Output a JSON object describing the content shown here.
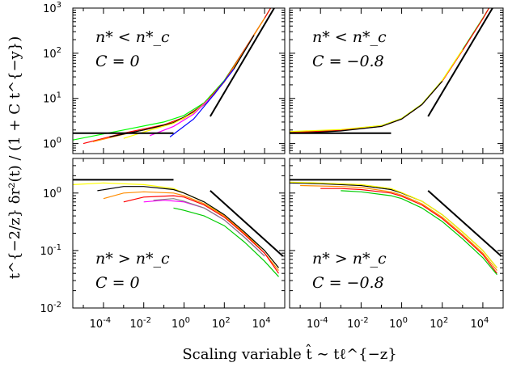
{
  "chart_data": {
    "type": "line",
    "xlabel": "Scaling variable t̂ ∼ tℓ^{−z}",
    "ylabel": "t^{−2/z} δr²(t) / (1 + C t^{−y})",
    "x_scale": "log",
    "y_scale": "log",
    "xlim": [
      3e-06,
      100000.0
    ],
    "x_ticks": [
      "10^-4",
      "10^-2",
      "10^0",
      "10^2",
      "10^4"
    ],
    "panels": [
      {
        "id": "top-left",
        "ylim": [
          0.6,
          1000
        ],
        "y_ticks": [
          "10^0",
          "10^1",
          "10^2",
          "10^3"
        ],
        "label_line1": "n* < n*_c",
        "label_line2": "C = 0",
        "reference_lines": [
          {
            "x": [
              3e-06,
              0.3
            ],
            "y": [
              1.7,
              1.7
            ]
          },
          {
            "x": [
              20,
              30000
            ],
            "y": [
              4,
              1000
            ]
          }
        ],
        "series": [
          {
            "color": "#00ff00",
            "x": [
              3e-06,
              0.001,
              0.1,
              1,
              10,
              100,
              1000,
              10000,
              20000
            ],
            "y": [
              1.2,
              2.0,
              3.0,
              4.2,
              8,
              25,
              120,
              600,
              1000
            ]
          },
          {
            "color": "#ff0000",
            "x": [
              1e-05,
              0.001,
              0.1,
              1,
              10,
              100,
              1000,
              10000,
              20000
            ],
            "y": [
              1.0,
              1.7,
              2.6,
              3.8,
              7.5,
              24,
              120,
              600,
              1000
            ]
          },
          {
            "color": "#ff8c00",
            "x": [
              3e-05,
              0.001,
              0.1,
              1,
              10,
              100,
              1000,
              10000
            ],
            "y": [
              1.1,
              1.6,
              2.5,
              3.6,
              7.2,
              23,
              115,
              600
            ]
          },
          {
            "color": "#000000",
            "x": [
              0.0002,
              0.01,
              0.3,
              3,
              30,
              300,
              3000
            ],
            "y": [
              1.4,
              2.0,
              2.9,
              5,
              12,
              45,
              250
            ]
          },
          {
            "color": "#ffff00",
            "x": [
              0.001,
              0.01,
              0.3,
              3,
              30,
              300
            ],
            "y": [
              1.3,
              1.8,
              2.8,
              4.8,
              12,
              45
            ]
          },
          {
            "color": "#ff00ff",
            "x": [
              0.02,
              0.3,
              3,
              30,
              300
            ],
            "y": [
              1.5,
              2.4,
              4.5,
              12,
              45
            ]
          },
          {
            "color": "#0000ff",
            "x": [
              0.2,
              3,
              30,
              300
            ],
            "y": [
              1.4,
              3.5,
              12,
              45
            ]
          }
        ]
      },
      {
        "id": "top-right",
        "ylim": [
          0.6,
          1000
        ],
        "y_ticks": [],
        "label_line1": "n* < n*_c",
        "label_line2": "C = −0.8",
        "reference_lines": [
          {
            "x": [
              3e-06,
              0.3
            ],
            "y": [
              1.7,
              1.7
            ]
          },
          {
            "x": [
              20,
              30000
            ],
            "y": [
              4,
              1000
            ]
          }
        ],
        "series": [
          {
            "color": "#00ff00",
            "x": [
              3e-06,
              0.001,
              0.1,
              1,
              10,
              100,
              1000,
              10000,
              20000
            ],
            "y": [
              1.8,
              2.0,
              2.5,
              3.6,
              7.5,
              25,
              120,
              600,
              1000
            ]
          },
          {
            "color": "#ff0000",
            "x": [
              3e-06,
              0.001,
              0.1,
              1,
              10,
              100,
              1000,
              10000,
              20000
            ],
            "y": [
              1.75,
              1.95,
              2.4,
              3.5,
              7.3,
              24,
              115,
              580,
              1000
            ]
          },
          {
            "color": "#ffff00",
            "x": [
              3e-06,
              0.001,
              0.1,
              1,
              10,
              100,
              1000
            ],
            "y": [
              1.85,
              2.05,
              2.5,
              3.6,
              7.5,
              25,
              120
            ]
          },
          {
            "color": "#000000",
            "x": [
              1e-05,
              0.001,
              0.1,
              1,
              10,
              100
            ],
            "y": [
              1.7,
              1.9,
              2.4,
              3.5,
              7.3,
              24
            ]
          }
        ]
      },
      {
        "id": "bottom-left",
        "ylim": [
          0.01,
          4
        ],
        "y_ticks": [
          "10^-2",
          "10^-1",
          "10^0"
        ],
        "label_line1": "n* > n*_c",
        "label_line2": "C = 0",
        "reference_lines": [
          {
            "x": [
              3e-06,
              0.3
            ],
            "y": [
              1.7,
              1.7
            ]
          },
          {
            "x": [
              20,
              80000
            ],
            "y": [
              1.1,
              0.08
            ]
          }
        ],
        "series": [
          {
            "color": "#ffff00",
            "x": [
              3e-06,
              0.0001,
              0.01,
              0.3,
              1,
              10,
              100,
              1000,
              10000,
              50000
            ],
            "y": [
              1.4,
              1.5,
              1.4,
              1.2,
              1.0,
              0.7,
              0.4,
              0.2,
              0.1,
              0.05
            ]
          },
          {
            "color": "#000000",
            "x": [
              5e-05,
              0.001,
              0.01,
              0.3,
              1,
              10,
              100,
              1000,
              10000,
              50000
            ],
            "y": [
              1.1,
              1.3,
              1.3,
              1.15,
              1.0,
              0.7,
              0.42,
              0.21,
              0.1,
              0.05
            ]
          },
          {
            "color": "#ff8c00",
            "x": [
              0.0001,
              0.001,
              0.01,
              0.3,
              1,
              10,
              100,
              1000,
              10000,
              50000
            ],
            "y": [
              0.8,
              1.0,
              1.05,
              1.0,
              0.9,
              0.65,
              0.4,
              0.2,
              0.09,
              0.045
            ]
          },
          {
            "color": "#ff0000",
            "x": [
              0.001,
              0.01,
              0.3,
              1,
              10,
              100,
              1000,
              10000,
              50000
            ],
            "y": [
              0.7,
              0.85,
              0.9,
              0.85,
              0.62,
              0.38,
              0.19,
              0.09,
              0.04
            ]
          },
          {
            "color": "#ff00ff",
            "x": [
              0.01,
              0.1,
              1,
              10,
              100,
              1000,
              10000
            ],
            "y": [
              0.7,
              0.75,
              0.7,
              0.55,
              0.34,
              0.17,
              0.08
            ]
          },
          {
            "color": "#808080",
            "x": [
              0.03,
              0.3,
              1,
              10,
              100,
              1000,
              10000
            ],
            "y": [
              0.75,
              0.8,
              0.72,
              0.55,
              0.34,
              0.17,
              0.08
            ]
          },
          {
            "color": "#00cc00",
            "x": [
              0.3,
              1,
              10,
              100,
              1000,
              10000,
              50000
            ],
            "y": [
              0.55,
              0.5,
              0.4,
              0.27,
              0.14,
              0.065,
              0.035
            ]
          }
        ]
      },
      {
        "id": "bottom-right",
        "ylim": [
          0.01,
          4
        ],
        "y_ticks": [],
        "label_line1": "n* > n*_c",
        "label_line2": "C = −0.8",
        "reference_lines": [
          {
            "x": [
              3e-06,
              0.3
            ],
            "y": [
              1.7,
              1.7
            ]
          },
          {
            "x": [
              20,
              80000
            ],
            "y": [
              1.1,
              0.08
            ]
          }
        ],
        "series": [
          {
            "color": "#000000",
            "x": [
              3e-06,
              0.0001,
              0.01,
              0.3,
              1,
              10,
              100,
              1000,
              10000,
              50000
            ],
            "y": [
              1.5,
              1.45,
              1.35,
              1.15,
              1.0,
              0.72,
              0.42,
              0.21,
              0.1,
              0.05
            ]
          },
          {
            "color": "#ffff00",
            "x": [
              3e-06,
              0.0001,
              0.01,
              0.3,
              1,
              10,
              100,
              1000,
              10000,
              50000
            ],
            "y": [
              1.55,
              1.5,
              1.4,
              1.2,
              1.02,
              0.72,
              0.42,
              0.21,
              0.1,
              0.05
            ]
          },
          {
            "color": "#ff8c00",
            "x": [
              1e-05,
              0.001,
              0.01,
              0.3,
              1,
              10,
              100,
              1000,
              10000,
              50000
            ],
            "y": [
              1.35,
              1.3,
              1.25,
              1.05,
              0.92,
              0.65,
              0.38,
              0.19,
              0.09,
              0.045
            ]
          },
          {
            "color": "#ff0000",
            "x": [
              0.0001,
              0.001,
              0.01,
              0.3,
              1,
              10,
              100,
              1000,
              10000,
              50000
            ],
            "y": [
              1.2,
              1.2,
              1.15,
              1.0,
              0.88,
              0.62,
              0.36,
              0.18,
              0.085,
              0.04
            ]
          },
          {
            "color": "#00cc00",
            "x": [
              0.001,
              0.01,
              0.3,
              1,
              10,
              100,
              1000,
              10000,
              50000
            ],
            "y": [
              1.1,
              1.05,
              0.9,
              0.8,
              0.55,
              0.32,
              0.16,
              0.075,
              0.038
            ]
          }
        ]
      }
    ]
  }
}
